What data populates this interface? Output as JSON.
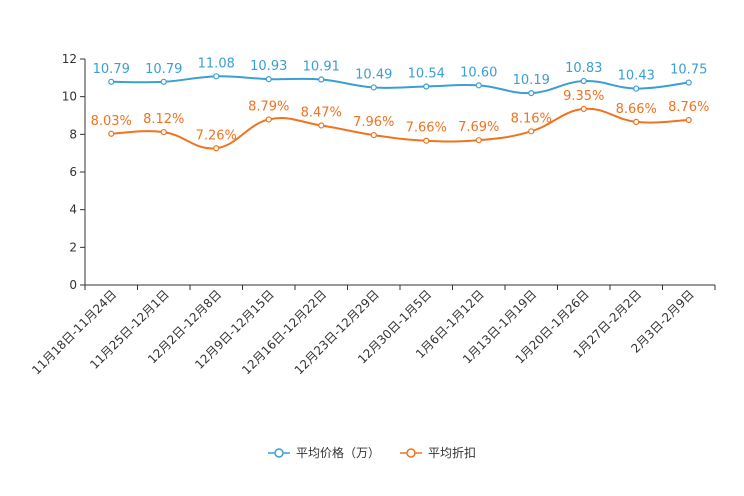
{
  "chart_data": {
    "type": "line",
    "categories": [
      "11月18日-11月24日",
      "11月25日-12月1日",
      "12月2日-12月8日",
      "12月9日-12月15日",
      "12月16日-12月22日",
      "12月23日-12月29日",
      "12月30日-1月5日",
      "1月6日-1月12日",
      "1月13日-1月19日",
      "1月20日-1月26日",
      "1月27日-2月2日",
      "2月3日-2月9日"
    ],
    "series": [
      {
        "name": "平均价格（万）",
        "color": "#3a9fd3",
        "values": [
          10.79,
          10.79,
          11.08,
          10.93,
          10.91,
          10.49,
          10.54,
          10.6,
          10.19,
          10.83,
          10.43,
          10.75
        ],
        "labels": [
          "10.79",
          "10.79",
          "11.08",
          "10.93",
          "10.91",
          "10.49",
          "10.54",
          "10.60",
          "10.19",
          "10.83",
          "10.43",
          "10.75"
        ]
      },
      {
        "name": "平均折扣",
        "color": "#f0731f",
        "values": [
          8.03,
          8.12,
          7.26,
          8.79,
          8.47,
          7.96,
          7.66,
          7.69,
          8.16,
          9.35,
          8.66,
          8.76
        ],
        "labels": [
          "8.03%",
          "8.12%",
          "7.26%",
          "8.79%",
          "8.47%",
          "7.96%",
          "7.66%",
          "7.69%",
          "8.16%",
          "9.35%",
          "8.66%",
          "8.76%"
        ]
      }
    ],
    "yticks": [
      "0",
      "2",
      "4",
      "6",
      "8",
      "10",
      "12"
    ],
    "ylim": [
      0,
      12
    ],
    "legend_position": "bottom"
  }
}
